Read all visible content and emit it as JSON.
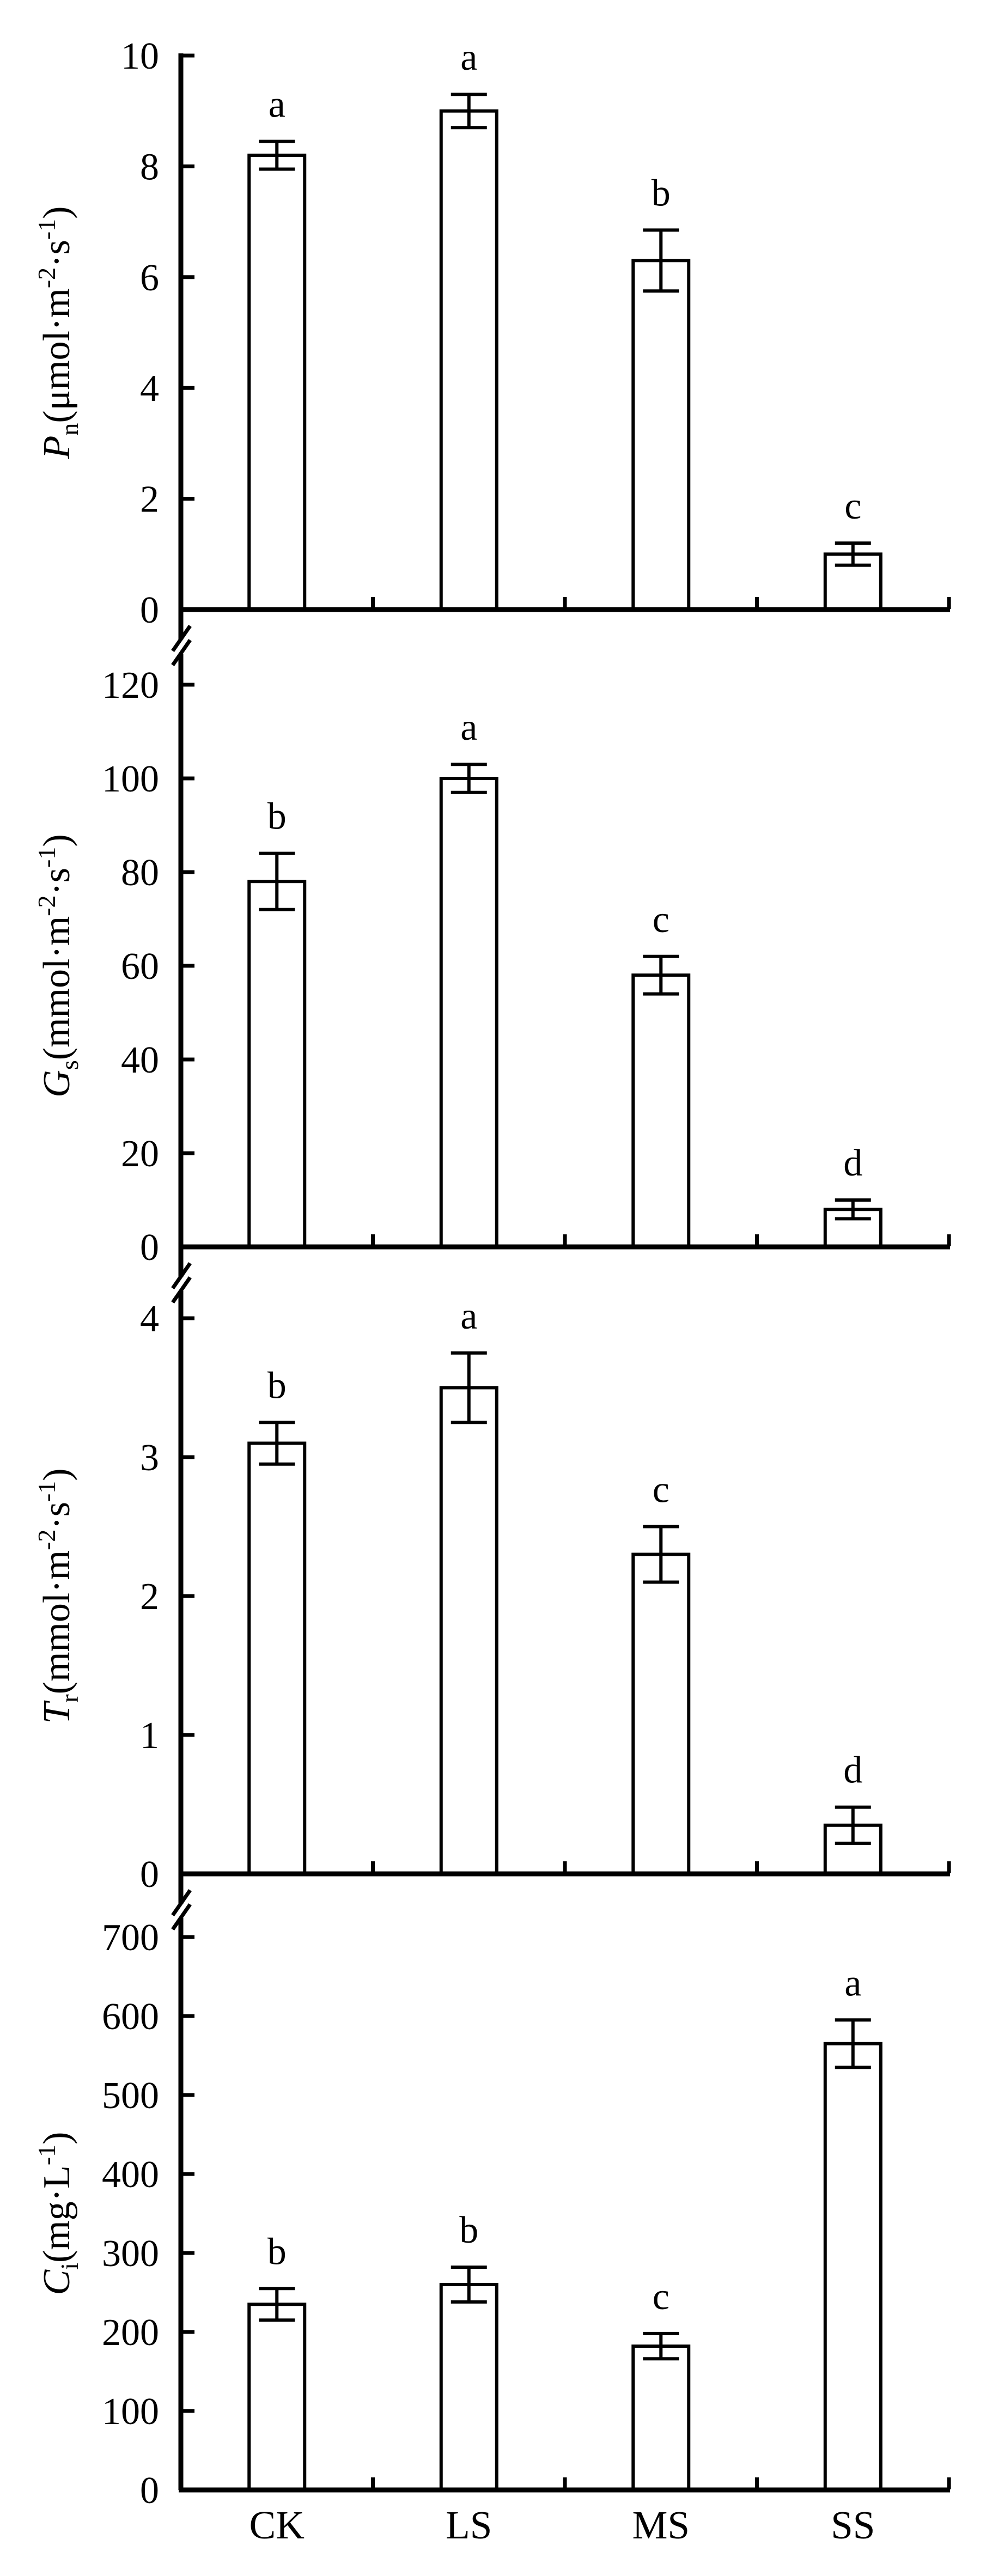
{
  "figure": {
    "background": "#ffffff",
    "ink_color": "#000000",
    "description": "Four vertically stacked open-bar charts sharing one broken y-axis, gas-exchange parameters under salt stress treatments",
    "x_categories": [
      "CK",
      "LS",
      "MS",
      "SS"
    ],
    "axis_breaks_between_panels": 3
  },
  "chart_data": [
    {
      "type": "bar",
      "id": "Pn",
      "ylabel": "Pn(μmol·m⁻²·s⁻¹)",
      "ylabel_segments": [
        {
          "t": "P",
          "style": "italic"
        },
        {
          "t": "n",
          "style": "sub"
        },
        {
          "t": "(μmol·m",
          "style": "normal"
        },
        {
          "t": "-2",
          "style": "sup"
        },
        {
          "t": "·s",
          "style": "normal"
        },
        {
          "t": "-1",
          "style": "sup"
        },
        {
          "t": ")",
          "style": "normal"
        }
      ],
      "categories": [
        "CK",
        "LS",
        "MS",
        "SS"
      ],
      "values": [
        8.2,
        9.0,
        6.3,
        1.0
      ],
      "errors": [
        0.25,
        0.3,
        0.55,
        0.2
      ],
      "sig_letters": [
        "a",
        "a",
        "b",
        "c"
      ],
      "yticks": [
        0,
        2,
        4,
        6,
        8,
        10
      ],
      "ylim": [
        0,
        10
      ],
      "bar_fill": "#ffffff",
      "bar_stroke": "#000000",
      "show_x_labels": false
    },
    {
      "type": "bar",
      "id": "Gs",
      "ylabel": "Gs(mmol·m⁻²·s⁻¹)",
      "ylabel_segments": [
        {
          "t": "G",
          "style": "italic"
        },
        {
          "t": "s",
          "style": "sub"
        },
        {
          "t": "(mmol·m",
          "style": "normal"
        },
        {
          "t": "-2",
          "style": "sup"
        },
        {
          "t": "·s",
          "style": "normal"
        },
        {
          "t": "-1",
          "style": "sup"
        },
        {
          "t": ")",
          "style": "normal"
        }
      ],
      "categories": [
        "CK",
        "LS",
        "MS",
        "SS"
      ],
      "values": [
        78,
        100,
        58,
        8
      ],
      "errors": [
        6,
        3,
        4,
        2
      ],
      "sig_letters": [
        "b",
        "a",
        "c",
        "d"
      ],
      "yticks": [
        0,
        20,
        40,
        60,
        80,
        100,
        120
      ],
      "ylim": [
        0,
        125
      ],
      "bar_fill": "#ffffff",
      "bar_stroke": "#000000",
      "show_x_labels": false
    },
    {
      "type": "bar",
      "id": "Tr",
      "ylabel": "Tr(mmol·m⁻²·s⁻¹)",
      "ylabel_segments": [
        {
          "t": "T",
          "style": "italic"
        },
        {
          "t": "r",
          "style": "sub"
        },
        {
          "t": "(mmol·m",
          "style": "normal"
        },
        {
          "t": "-2",
          "style": "sup"
        },
        {
          "t": "·s",
          "style": "normal"
        },
        {
          "t": "-1",
          "style": "sup"
        },
        {
          "t": ")",
          "style": "normal"
        }
      ],
      "categories": [
        "CK",
        "LS",
        "MS",
        "SS"
      ],
      "values": [
        3.1,
        3.5,
        2.3,
        0.35
      ],
      "errors": [
        0.15,
        0.25,
        0.2,
        0.13
      ],
      "sig_letters": [
        "b",
        "a",
        "c",
        "d"
      ],
      "yticks": [
        0,
        1,
        2,
        3,
        4
      ],
      "ylim": [
        0,
        4.2
      ],
      "bar_fill": "#ffffff",
      "bar_stroke": "#000000",
      "show_x_labels": false
    },
    {
      "type": "bar",
      "id": "Ci",
      "ylabel": "Ci(mg·L⁻¹)",
      "ylabel_segments": [
        {
          "t": "C",
          "style": "italic"
        },
        {
          "t": "i",
          "style": "sub"
        },
        {
          "t": "(mg·L",
          "style": "normal"
        },
        {
          "t": "-1",
          "style": "sup"
        },
        {
          "t": ")",
          "style": "normal"
        }
      ],
      "categories": [
        "CK",
        "LS",
        "MS",
        "SS"
      ],
      "values": [
        235,
        260,
        182,
        565
      ],
      "errors": [
        20,
        22,
        16,
        30
      ],
      "sig_letters": [
        "b",
        "b",
        "c",
        "a"
      ],
      "yticks": [
        0,
        100,
        200,
        300,
        400,
        500,
        600,
        700
      ],
      "ylim": [
        0,
        727
      ],
      "bar_fill": "#ffffff",
      "bar_stroke": "#000000",
      "show_x_labels": true
    }
  ]
}
